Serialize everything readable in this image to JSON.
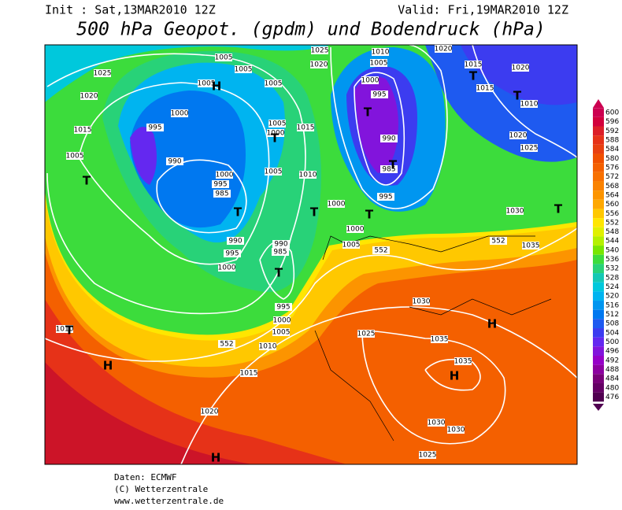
{
  "header": {
    "init": "Init : Sat,13MAR2010 12Z",
    "valid": "Valid: Fri,19MAR2010 12Z",
    "title": "500 hPa Geopot. (gpdm) und Bodendruck (hPa)"
  },
  "colorbar": {
    "levels": [
      600,
      596,
      592,
      588,
      584,
      580,
      576,
      572,
      568,
      564,
      560,
      556,
      552,
      548,
      544,
      540,
      536,
      532,
      528,
      524,
      520,
      516,
      512,
      508,
      504,
      500,
      496,
      492,
      488,
      484,
      480,
      476
    ],
    "colors": [
      "#cc0050",
      "#d2003c",
      "#dc1e28",
      "#e63218",
      "#e84010",
      "#f05000",
      "#f46000",
      "#f87000",
      "#fa8200",
      "#fc9400",
      "#fea800",
      "#ffc800",
      "#ffe600",
      "#e0f000",
      "#b4f000",
      "#78e600",
      "#3cdc3c",
      "#28d278",
      "#14c8b4",
      "#00c8dc",
      "#00b4f0",
      "#0096f0",
      "#0078f0",
      "#1e5af0",
      "#3c3cf0",
      "#6428f0",
      "#8214dc",
      "#9600c8",
      "#8c00a0",
      "#780078",
      "#640064",
      "#500050"
    ]
  },
  "map": {
    "isobar_labels": [
      "1025",
      "1020",
      "1015",
      "1005",
      "995",
      "1000",
      "1005",
      "1005",
      "1005",
      "1005",
      "990",
      "1000",
      "995",
      "985",
      "1005",
      "1000",
      "1015",
      "1005",
      "1010",
      "1000",
      "1000",
      "990",
      "995",
      "1000",
      "990",
      "985",
      "1005",
      "1010",
      "1005",
      "1000",
      "995",
      "990",
      "985",
      "995",
      "1025",
      "1020",
      "1020",
      "1015",
      "1015",
      "1020",
      "1010",
      "1020",
      "1025",
      "1030",
      "1035",
      "552",
      "552",
      "552",
      "1030",
      "1035",
      "1035",
      "1025",
      "995",
      "1000",
      "1005",
      "1010",
      "1015",
      "1020",
      "1030",
      "1030",
      "1025",
      "1010"
    ],
    "pressure_centers": [
      "H",
      "H",
      "H",
      "H",
      "H",
      "T",
      "T",
      "T",
      "T",
      "T",
      "T",
      "T",
      "T",
      "T",
      "T",
      "T",
      "T"
    ]
  },
  "footer": [
    "Daten: ECMWF",
    "(C) Wetterzentrale",
    "www.wetterzentrale.de"
  ]
}
